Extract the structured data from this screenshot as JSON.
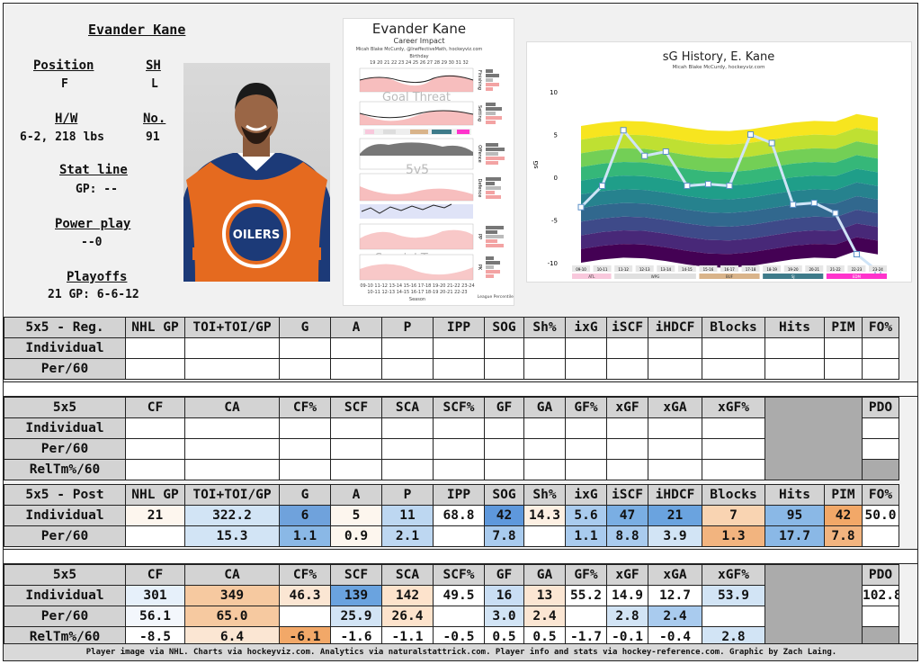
{
  "player": {
    "name": "Evander Kane",
    "position_label": "Position",
    "position": "F",
    "shoots_label": "SH",
    "shoots": "L",
    "hw_label": "H/W",
    "hw": "6-2, 218 lbs",
    "number_label": "No.",
    "number": "91",
    "statline_label": "Stat line",
    "gp_line": "GP: --",
    "pp_label": "Power play",
    "pp_line": "--0",
    "playoffs_label": "Playoffs",
    "playoffs_line": "21 GP: 6-6-12"
  },
  "career_chart": {
    "title": "Evander Kane",
    "subtitle": "Career Impact",
    "credit": "Micah Blake McCurdy, @IneffectiveMath, hockeyviz.com",
    "birthday_label": "Birthday",
    "ages": [
      "19",
      "20",
      "21",
      "22",
      "23",
      "24",
      "25",
      "26",
      "27",
      "28",
      "29",
      "30",
      "31",
      "32"
    ],
    "labels": [
      "Goal Threat",
      "5v5",
      "Special Teams"
    ],
    "right_labels": [
      "Finishing",
      "Setting",
      "Offence",
      "Defence",
      "PP",
      "PK"
    ],
    "xaxis_label": "Season",
    "legend_label": "League Percentiles",
    "seasons_top": [
      "09-10",
      "11-12",
      "13-14",
      "15-16",
      "17-18",
      "19-20",
      "21-22",
      "23-24"
    ],
    "seasons_bottom": [
      "10-11",
      "12-13",
      "14-15",
      "16-17",
      "18-19",
      "20-21",
      "22-23"
    ]
  },
  "sg_chart": {
    "title": "sG History, E. Kane",
    "credit": "Micah Blake McCurdy, hockeyviz.com",
    "ylabel": "sG",
    "yticks": [
      "10",
      "5",
      "0",
      "-5",
      "-10"
    ],
    "seasons": [
      "09-10",
      "10-11",
      "11-12",
      "12-13",
      "13-14",
      "14-15",
      "15-16",
      "16-17",
      "17-18",
      "18-19",
      "19-20",
      "20-21",
      "21-22",
      "22-23",
      "23-24"
    ],
    "values": [
      -3.5,
      -1,
      5.5,
      2.5,
      3,
      -1,
      -0.8,
      -1,
      5,
      4,
      -3.2,
      -3,
      -4.2,
      -9,
      -11
    ],
    "teams": [
      "ATL",
      "WPG",
      "BUF",
      "SJ",
      "EDM"
    ],
    "team_colors": [
      "#f8c8dc",
      "#e0e0e0",
      "#d9b48a",
      "#3e7b8a",
      "#ff33cc"
    ]
  },
  "tables": {
    "reg_title": "5x5 - Reg.",
    "post_title": "5x5 - Post",
    "ind_headers": [
      "NHL GP",
      "TOI+TOI/GP",
      "G",
      "A",
      "P",
      "IPP",
      "SOG",
      "Sh%",
      "ixG",
      "iSCF",
      "iHDCF",
      "Blocks",
      "Hits",
      "PIM",
      "FO%"
    ],
    "onice_title": "5x5",
    "onice_headers": [
      "CF",
      "CA",
      "CF%",
      "SCF",
      "SCA",
      "SCF%",
      "GF",
      "GA",
      "GF%",
      "xGF",
      "xGA",
      "xGF%"
    ],
    "pdo_header": "PDO",
    "row_individual": "Individual",
    "row_per60": "Per/60",
    "row_reltm": "RelTm%/60",
    "post_individual": [
      "21",
      "322.2",
      "6",
      "5",
      "11",
      "68.8",
      "42",
      "14.3",
      "5.6",
      "47",
      "21",
      "7",
      "95",
      "42",
      "50.0"
    ],
    "post_per60": [
      "",
      "15.3",
      "1.1",
      "0.9",
      "2.1",
      "",
      "7.8",
      "",
      "1.1",
      "8.8",
      "3.9",
      "1.3",
      "17.7",
      "7.8",
      ""
    ],
    "post_onice_individual": [
      "301",
      "349",
      "46.3",
      "139",
      "142",
      "49.5",
      "16",
      "13",
      "55.2",
      "14.9",
      "12.7",
      "53.9"
    ],
    "post_onice_per60": [
      "56.1",
      "65.0",
      "",
      "25.9",
      "26.4",
      "",
      "3.0",
      "2.4",
      "",
      "2.8",
      "2.4",
      ""
    ],
    "post_onice_reltm": [
      "-8.5",
      "6.4",
      "-6.1",
      "-1.6",
      "-1.1",
      "-0.5",
      "0.5",
      "0.5",
      "-1.7",
      "-0.1",
      "-0.4",
      "2.8"
    ],
    "pdo_value": "102.8",
    "colors": {
      "post_individual": [
        "#fdf6ee",
        "#d2e4f5",
        "#6fa2dc",
        "#fdf6ee",
        "#bdd7f1",
        "#ffffff",
        "#5e98dc",
        "#fdf0e3",
        "#a9cbee",
        "#7aaee3",
        "#6aa3df",
        "#f9d4b2",
        "#8ab8e6",
        "#f2a868",
        "#ffffff"
      ],
      "post_per60": [
        "#ffffff",
        "#d2e4f5",
        "#8ab8e6",
        "#fdf6ee",
        "#bdd7f1",
        "#ffffff",
        "#a9cbee",
        "#ffffff",
        "#a9cbee",
        "#a9cbee",
        "#d2e4f5",
        "#f2b47f",
        "#8ab8e6",
        "#f2b47f",
        "#ffffff"
      ],
      "post_onice_individual": [
        "#e6f0fa",
        "#f6c9a0",
        "#fbe6d3",
        "#6aa3df",
        "#fde3cc",
        "#ffffff",
        "#c9def4",
        "#fbe6d3",
        "#ffffff",
        "#ffffff",
        "#ffffff",
        "#d2e4f5"
      ],
      "post_onice_per60": [
        "#f3f7fc",
        "#f6c9a0",
        "#ffffff",
        "#d2e4f5",
        "#fde3cc",
        "#ffffff",
        "#d2e4f5",
        "#fbe6d3",
        "#ffffff",
        "#d2e4f5",
        "#a9cbee",
        "#ffffff"
      ],
      "post_onice_reltm": [
        "#ffffff",
        "#fbe6d3",
        "#f2a868",
        "#ffffff",
        "#ffffff",
        "#ffffff",
        "#ffffff",
        "#ffffff",
        "#ffffff",
        "#ffffff",
        "#ffffff",
        "#d2e4f5"
      ]
    }
  },
  "footer": "Player image via NHL. Charts via hockeyviz.com. Analytics via naturalstattrick.com. Player info and stats via hockey-reference.com. Graphic by Zach Laing."
}
